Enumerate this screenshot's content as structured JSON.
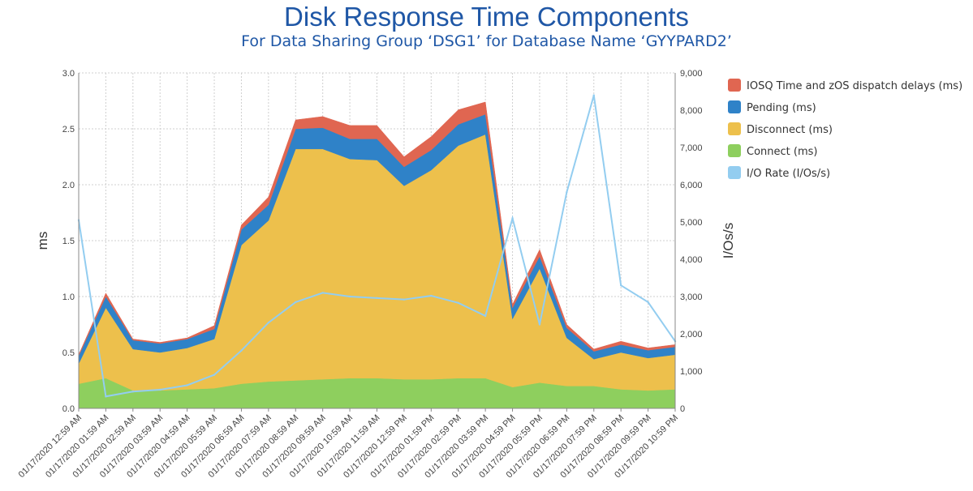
{
  "chart_data": {
    "type": "area",
    "title": "Disk Response Time Components",
    "subtitle": "For Data Sharing Group ‘DSG1’ for Database Name ‘GYYPARD2’",
    "ylabel": "ms",
    "y2label": "I/Os/s",
    "ylim": [
      0,
      3.0
    ],
    "y2lim": [
      0,
      9000
    ],
    "y_ticks": [
      "0.0",
      "0.5",
      "1.0",
      "1.5",
      "2.0",
      "2.5",
      "3.0"
    ],
    "y2_ticks": [
      "0",
      "1,000",
      "2,000",
      "3,000",
      "4,000",
      "5,000",
      "6,000",
      "7,000",
      "8,000",
      "9,000"
    ],
    "grid": true,
    "legend_position": "right",
    "categories": [
      "01/17/2020 12:59 AM",
      "01/17/2020 01:59 AM",
      "01/17/2020 02:59 AM",
      "01/17/2020 03:59 AM",
      "01/17/2020 04:59 AM",
      "01/17/2020 05:59 AM",
      "01/17/2020 06:59 AM",
      "01/17/2020 07:59 AM",
      "01/17/2020 08:59 AM",
      "01/17/2020 09:59 AM",
      "01/17/2020 10:59 AM",
      "01/17/2020 11:59 AM",
      "01/17/2020 12:59 PM",
      "01/17/2020 01:59 PM",
      "01/17/2020 02:59 PM",
      "01/17/2020 03:59 PM",
      "01/17/2020 04:59 PM",
      "01/17/2020 05:59 PM",
      "01/17/2020 06:59 PM",
      "01/17/2020 07:59 PM",
      "01/17/2020 08:59 PM",
      "01/17/2020 09:59 PM",
      "01/17/2020 10:59 PM"
    ],
    "stacked_series": [
      {
        "name": "Connect (ms)",
        "color": "#8ecf5e",
        "values": [
          0.22,
          0.27,
          0.16,
          0.16,
          0.17,
          0.18,
          0.22,
          0.24,
          0.25,
          0.26,
          0.27,
          0.27,
          0.26,
          0.26,
          0.27,
          0.27,
          0.19,
          0.23,
          0.2,
          0.2,
          0.17,
          0.16,
          0.17
        ]
      },
      {
        "name": "Disconnect (ms)",
        "color": "#edc04c",
        "values": [
          0.18,
          0.63,
          0.37,
          0.34,
          0.37,
          0.44,
          1.24,
          1.44,
          2.07,
          2.06,
          1.96,
          1.95,
          1.73,
          1.87,
          2.08,
          2.18,
          0.61,
          1.02,
          0.43,
          0.24,
          0.33,
          0.29,
          0.31
        ]
      },
      {
        "name": "Pending (ms)",
        "color": "#2f82c8",
        "values": [
          0.07,
          0.1,
          0.08,
          0.08,
          0.08,
          0.09,
          0.14,
          0.14,
          0.18,
          0.19,
          0.18,
          0.19,
          0.17,
          0.18,
          0.19,
          0.18,
          0.1,
          0.11,
          0.09,
          0.07,
          0.07,
          0.07,
          0.07
        ]
      },
      {
        "name": "IOSQ Time and zOS dispatch delays (ms)",
        "color": "#e06651",
        "values": [
          0.01,
          0.03,
          0.01,
          0.01,
          0.01,
          0.03,
          0.04,
          0.07,
          0.08,
          0.1,
          0.12,
          0.12,
          0.09,
          0.12,
          0.13,
          0.11,
          0.03,
          0.06,
          0.03,
          0.02,
          0.03,
          0.02,
          0.02
        ]
      }
    ],
    "line_series": [
      {
        "name": "I/O Rate (I/Os/s)",
        "color": "#93cdf0",
        "axis": "right",
        "values": [
          5050,
          320,
          450,
          500,
          620,
          900,
          1550,
          2300,
          2850,
          3100,
          3000,
          2960,
          2920,
          3020,
          2830,
          2480,
          5100,
          2250,
          5800,
          8400,
          3300,
          2850,
          1800
        ]
      }
    ],
    "legend": [
      {
        "label": "IOSQ Time and zOS dispatch delays (ms)",
        "color": "#e06651"
      },
      {
        "label": "Pending (ms)",
        "color": "#2f82c8"
      },
      {
        "label": "Disconnect (ms)",
        "color": "#edc04c"
      },
      {
        "label": "Connect (ms)",
        "color": "#8ecf5e"
      },
      {
        "label": "I/O Rate (I/Os/s)",
        "color": "#93cdf0"
      }
    ]
  }
}
